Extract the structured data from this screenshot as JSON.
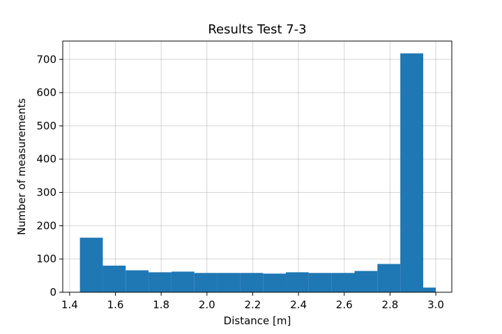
{
  "chart_data": {
    "type": "bar",
    "title": "Results Test 7-3",
    "xlabel": "Distance [m]",
    "ylabel": "Number of measurements",
    "xlim": [
      1.37,
      3.07
    ],
    "ylim": [
      0,
      755
    ],
    "grid": true,
    "xticks": [
      1.4,
      1.6,
      1.8,
      2.0,
      2.2,
      2.4,
      2.6,
      2.8,
      3.0
    ],
    "xtick_labels": [
      "1.4",
      "1.6",
      "1.8",
      "2.0",
      "2.2",
      "2.4",
      "2.6",
      "2.8",
      "3.0"
    ],
    "yticks": [
      0,
      100,
      200,
      300,
      400,
      500,
      600,
      700
    ],
    "ytick_labels": [
      "0",
      "100",
      "200",
      "300",
      "400",
      "500",
      "600",
      "700"
    ],
    "bin_edges": [
      1.445,
      1.545,
      1.645,
      1.745,
      1.845,
      1.945,
      2.045,
      2.145,
      2.245,
      2.345,
      2.445,
      2.545,
      2.645,
      2.745,
      2.845,
      2.945,
      3.0
    ],
    "values": [
      164,
      80,
      66,
      60,
      62,
      58,
      58,
      58,
      56,
      60,
      58,
      58,
      64,
      85,
      718,
      14
    ],
    "bar_color": "#1f77b4",
    "grid_color": "#b0b0b0"
  }
}
